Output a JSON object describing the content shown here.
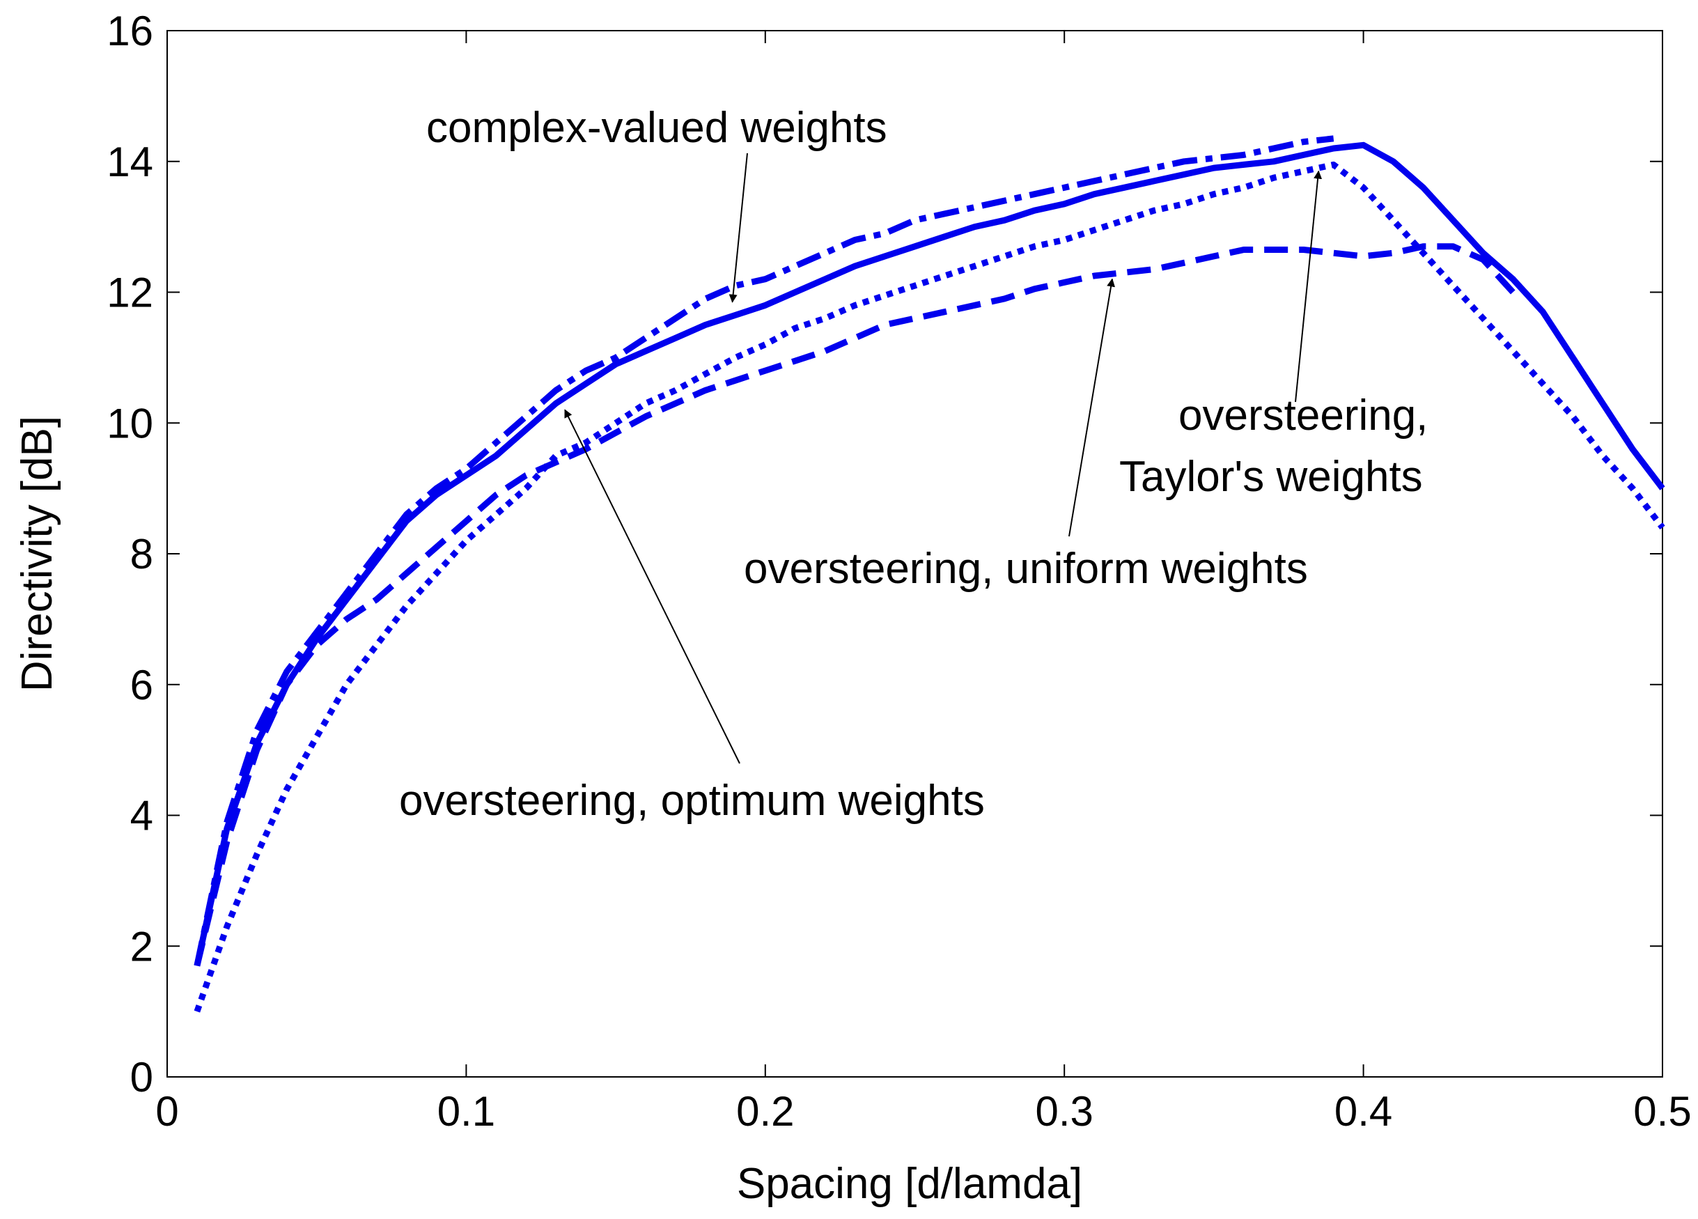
{
  "chart_data": {
    "type": "line",
    "title": "",
    "xlabel": "Spacing [d/lamda]",
    "ylabel": "Directivity [dB]",
    "xlim": [
      0,
      0.5
    ],
    "ylim": [
      0,
      16
    ],
    "xticks": [
      0,
      0.1,
      0.2,
      0.3,
      0.4,
      0.5
    ],
    "xtick_labels": [
      "0",
      "0.1",
      "0.2",
      "0.3",
      "0.4",
      "0.5"
    ],
    "yticks": [
      0,
      2,
      4,
      6,
      8,
      10,
      12,
      14,
      16
    ],
    "ytick_labels": [
      "0",
      "2",
      "4",
      "6",
      "8",
      "10",
      "12",
      "14",
      "16"
    ],
    "grid": false,
    "line_color": "#0000ee",
    "series": [
      {
        "name": "complex-valued weights",
        "style": "dashdot",
        "x": [
          0.01,
          0.02,
          0.03,
          0.04,
          0.05,
          0.06,
          0.07,
          0.08,
          0.09,
          0.1,
          0.11,
          0.12,
          0.13,
          0.14,
          0.15,
          0.16,
          0.17,
          0.18,
          0.19,
          0.2,
          0.21,
          0.22,
          0.23,
          0.24,
          0.25,
          0.26,
          0.27,
          0.28,
          0.29,
          0.3,
          0.31,
          0.32,
          0.33,
          0.34,
          0.35,
          0.36,
          0.37,
          0.38,
          0.39
        ],
        "y": [
          1.7,
          3.9,
          5.3,
          6.2,
          6.8,
          7.4,
          8.0,
          8.6,
          9.0,
          9.3,
          9.7,
          10.1,
          10.5,
          10.8,
          11.0,
          11.3,
          11.6,
          11.9,
          12.1,
          12.2,
          12.4,
          12.6,
          12.8,
          12.9,
          13.1,
          13.2,
          13.3,
          13.4,
          13.5,
          13.6,
          13.7,
          13.8,
          13.9,
          14.0,
          14.05,
          14.1,
          14.2,
          14.3,
          14.35
        ]
      },
      {
        "name": "oversteering, optimum weights",
        "style": "solid",
        "x": [
          0.01,
          0.02,
          0.03,
          0.04,
          0.05,
          0.06,
          0.07,
          0.08,
          0.09,
          0.1,
          0.11,
          0.12,
          0.13,
          0.14,
          0.15,
          0.16,
          0.17,
          0.18,
          0.19,
          0.2,
          0.21,
          0.22,
          0.23,
          0.24,
          0.25,
          0.26,
          0.27,
          0.28,
          0.29,
          0.3,
          0.31,
          0.32,
          0.33,
          0.34,
          0.35,
          0.36,
          0.37,
          0.38,
          0.39,
          0.4,
          0.41,
          0.42,
          0.43,
          0.44,
          0.45,
          0.46,
          0.47,
          0.48,
          0.49,
          0.5
        ],
        "y": [
          1.7,
          3.8,
          5.1,
          6.0,
          6.7,
          7.3,
          7.9,
          8.5,
          8.9,
          9.2,
          9.5,
          9.9,
          10.3,
          10.6,
          10.9,
          11.1,
          11.3,
          11.5,
          11.65,
          11.8,
          12.0,
          12.2,
          12.4,
          12.55,
          12.7,
          12.85,
          13.0,
          13.1,
          13.25,
          13.35,
          13.5,
          13.6,
          13.7,
          13.8,
          13.9,
          13.95,
          14.0,
          14.1,
          14.2,
          14.25,
          14.0,
          13.6,
          13.1,
          12.6,
          12.2,
          11.7,
          11.0,
          10.3,
          9.6,
          9.0
        ]
      },
      {
        "name": "oversteering, Taylor's weights",
        "style": "dotted",
        "x": [
          0.01,
          0.02,
          0.03,
          0.04,
          0.05,
          0.06,
          0.07,
          0.08,
          0.09,
          0.1,
          0.11,
          0.12,
          0.13,
          0.14,
          0.15,
          0.16,
          0.17,
          0.18,
          0.19,
          0.2,
          0.21,
          0.22,
          0.23,
          0.24,
          0.25,
          0.26,
          0.27,
          0.28,
          0.29,
          0.3,
          0.31,
          0.32,
          0.33,
          0.34,
          0.35,
          0.36,
          0.37,
          0.38,
          0.39,
          0.4,
          0.41,
          0.42,
          0.43,
          0.44,
          0.45,
          0.46,
          0.47,
          0.48,
          0.49,
          0.5
        ],
        "y": [
          1.0,
          2.3,
          3.4,
          4.4,
          5.2,
          6.0,
          6.6,
          7.2,
          7.7,
          8.2,
          8.6,
          9.0,
          9.5,
          9.7,
          10.0,
          10.3,
          10.5,
          10.75,
          11.0,
          11.2,
          11.45,
          11.6,
          11.8,
          11.95,
          12.1,
          12.25,
          12.4,
          12.55,
          12.7,
          12.8,
          12.95,
          13.1,
          13.25,
          13.35,
          13.5,
          13.6,
          13.75,
          13.85,
          13.95,
          13.6,
          13.1,
          12.6,
          12.1,
          11.6,
          11.1,
          10.6,
          10.1,
          9.5,
          9.0,
          8.4
        ]
      },
      {
        "name": "oversteering, uniform weights",
        "style": "dashed",
        "x": [
          0.01,
          0.02,
          0.03,
          0.04,
          0.05,
          0.06,
          0.07,
          0.08,
          0.09,
          0.1,
          0.11,
          0.12,
          0.13,
          0.14,
          0.15,
          0.16,
          0.17,
          0.18,
          0.19,
          0.2,
          0.21,
          0.22,
          0.23,
          0.24,
          0.25,
          0.26,
          0.27,
          0.28,
          0.29,
          0.3,
          0.31,
          0.32,
          0.33,
          0.34,
          0.35,
          0.36,
          0.37,
          0.38,
          0.39,
          0.4,
          0.41,
          0.42,
          0.43,
          0.44,
          0.45
        ],
        "y": [
          1.7,
          3.6,
          5.0,
          6.0,
          6.6,
          7.0,
          7.3,
          7.7,
          8.1,
          8.5,
          8.9,
          9.2,
          9.4,
          9.6,
          9.85,
          10.1,
          10.3,
          10.5,
          10.65,
          10.8,
          10.95,
          11.1,
          11.3,
          11.5,
          11.6,
          11.7,
          11.8,
          11.9,
          12.05,
          12.15,
          12.25,
          12.3,
          12.35,
          12.45,
          12.55,
          12.65,
          12.65,
          12.65,
          12.6,
          12.55,
          12.6,
          12.7,
          12.7,
          12.5,
          12.0
        ]
      }
    ],
    "annotations": [
      {
        "label": "complex-valued weights",
        "target_x": 0.189,
        "target_y": 11.85
      },
      {
        "label": "oversteering, optimum weights",
        "target_x": 0.133,
        "target_y": 10.2
      },
      {
        "label": "oversteering,",
        "target_x": null,
        "target_y": null
      },
      {
        "label": "Taylor's weights",
        "target_x": 0.385,
        "target_y": 13.85
      },
      {
        "label": "oversteering, uniform weights",
        "target_x": 0.316,
        "target_y": 12.2
      }
    ]
  }
}
